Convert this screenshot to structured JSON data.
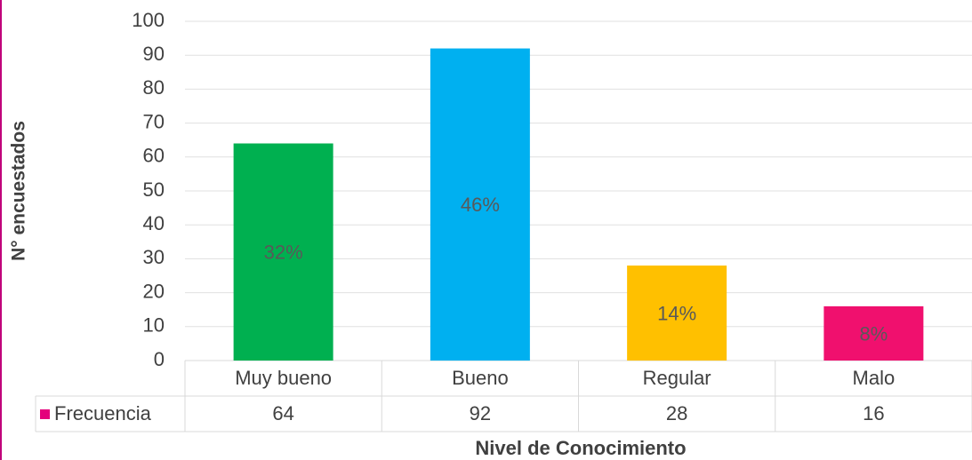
{
  "chart_data": {
    "type": "bar",
    "y_axis_label": "N° encuestados",
    "x_axis_label": "Nivel de Conocimiento",
    "categories": [
      "Muy bueno",
      "Bueno",
      "Regular",
      "Malo"
    ],
    "series": [
      {
        "name": "Frecuencia",
        "color": "#e4007c",
        "values": [
          64,
          92,
          28,
          16
        ],
        "point_colors": [
          "#00b050",
          "#00b0f0",
          "#ffc000",
          "#f0106e"
        ],
        "percent_labels": [
          "32%",
          "46%",
          "14%",
          "8%"
        ]
      }
    ],
    "ylim": [
      0,
      100
    ],
    "yticks": [
      0,
      10,
      20,
      30,
      40,
      50,
      60,
      70,
      80,
      90,
      100
    ],
    "grid": true,
    "data_table": true
  }
}
